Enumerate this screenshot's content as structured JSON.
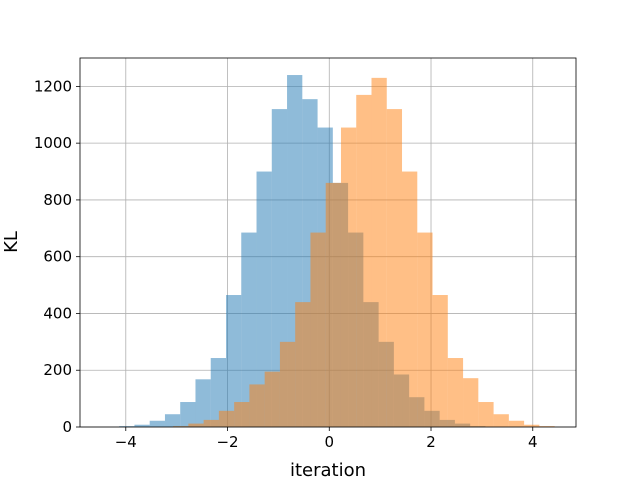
{
  "chart_data": {
    "type": "histogram",
    "title": "",
    "xlabel": "iteration",
    "ylabel": "KL",
    "xlim": [
      -4.9,
      4.85
    ],
    "ylim": [
      0,
      1300
    ],
    "xticks": [
      -4,
      -2,
      0,
      2,
      4
    ],
    "xtick_labels": [
      "−4",
      "−2",
      "0",
      "2",
      "4"
    ],
    "yticks": [
      0,
      200,
      400,
      600,
      800,
      1000,
      1200
    ],
    "ytick_labels": [
      "0",
      "200",
      "400",
      "600",
      "800",
      "1000",
      "1200"
    ],
    "grid": true,
    "legend": null,
    "overlap_alpha": 0.5,
    "series": [
      {
        "color": "#1f77b4",
        "bin_edges": [
          -4.13,
          -3.83,
          -3.53,
          -3.23,
          -2.93,
          -2.63,
          -2.33,
          -2.03,
          -1.73,
          -1.43,
          -1.13,
          -0.83,
          -0.53,
          -0.23,
          0.07,
          0.37,
          0.67,
          0.97,
          1.27,
          1.57,
          1.87,
          2.17,
          2.47,
          2.77,
          3.07
        ],
        "counts": [
          3,
          8,
          22,
          45,
          88,
          168,
          243,
          465,
          685,
          900,
          1120,
          1240,
          1155,
          1055,
          860,
          685,
          440,
          300,
          185,
          105,
          57,
          25,
          12,
          3
        ]
      },
      {
        "color": "#ff7f0e",
        "bin_edges": [
          -3.07,
          -2.77,
          -2.47,
          -2.17,
          -1.87,
          -1.57,
          -1.27,
          -0.97,
          -0.67,
          -0.37,
          -0.07,
          0.23,
          0.53,
          0.83,
          1.13,
          1.43,
          1.73,
          2.03,
          2.33,
          2.63,
          2.93,
          3.23,
          3.53,
          3.83,
          4.13,
          4.43
        ],
        "counts": [
          3,
          12,
          25,
          57,
          88,
          150,
          195,
          300,
          440,
          685,
          860,
          1055,
          1170,
          1230,
          1120,
          900,
          685,
          465,
          243,
          172,
          88,
          45,
          22,
          8,
          3
        ]
      }
    ]
  }
}
